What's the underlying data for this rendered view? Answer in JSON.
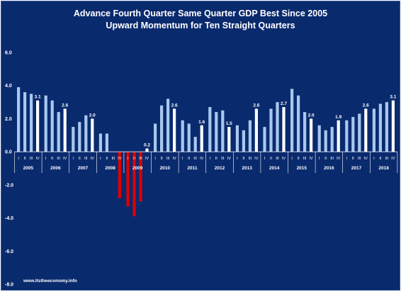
{
  "chart_data": {
    "type": "bar",
    "title": "Advance Fourth Quarter Same Quarter GDP Best Since 2005",
    "subtitle": "Upward Momentum for Ten Straight Quarters",
    "source": "www.itstheeconomy.info",
    "ylim": [
      -8.0,
      6.0
    ],
    "yticks": [
      "6.0",
      "4.0",
      "2.0",
      "0.0",
      "-2.0",
      "-4.0",
      "-6.0",
      "-8.0"
    ],
    "quarter_labels": [
      "I",
      "II",
      "III",
      "IV"
    ],
    "years": [
      "2005",
      "2006",
      "2007",
      "2008",
      "2009",
      "2010",
      "2011",
      "2012",
      "2013",
      "2014",
      "2015",
      "2016",
      "2017",
      "2018"
    ],
    "values": [
      3.9,
      3.6,
      3.5,
      3.1,
      3.4,
      3.1,
      2.4,
      2.6,
      1.5,
      1.8,
      2.2,
      2.0,
      1.1,
      1.1,
      0.0,
      -2.8,
      -3.3,
      -3.9,
      -3.0,
      0.2,
      1.7,
      2.8,
      3.2,
      2.6,
      1.9,
      1.7,
      0.9,
      1.6,
      2.7,
      2.4,
      2.5,
      1.5,
      1.6,
      1.3,
      1.9,
      2.6,
      1.5,
      2.6,
      3.0,
      2.7,
      3.8,
      3.4,
      2.4,
      2.0,
      1.6,
      1.3,
      1.5,
      1.9,
      1.9,
      2.1,
      2.3,
      2.6,
      2.6,
      2.9,
      3.0,
      3.1
    ],
    "data_labels": {
      "3": "3.1",
      "7": "2.6",
      "11": "2.0",
      "19": "0.2",
      "23": "2.6",
      "27": "1.6",
      "31": "1.5",
      "35": "2.6",
      "39": "2.7",
      "43": "2.0",
      "47": "1.9",
      "51": "2.6",
      "55": "3.1"
    },
    "colors": {
      "background": "#0a2a6e",
      "bar_default": "#a9c8ef",
      "bar_fourth_quarter": "#ffffff",
      "bar_negative": "#e00000",
      "axis": "#ffffff"
    }
  }
}
